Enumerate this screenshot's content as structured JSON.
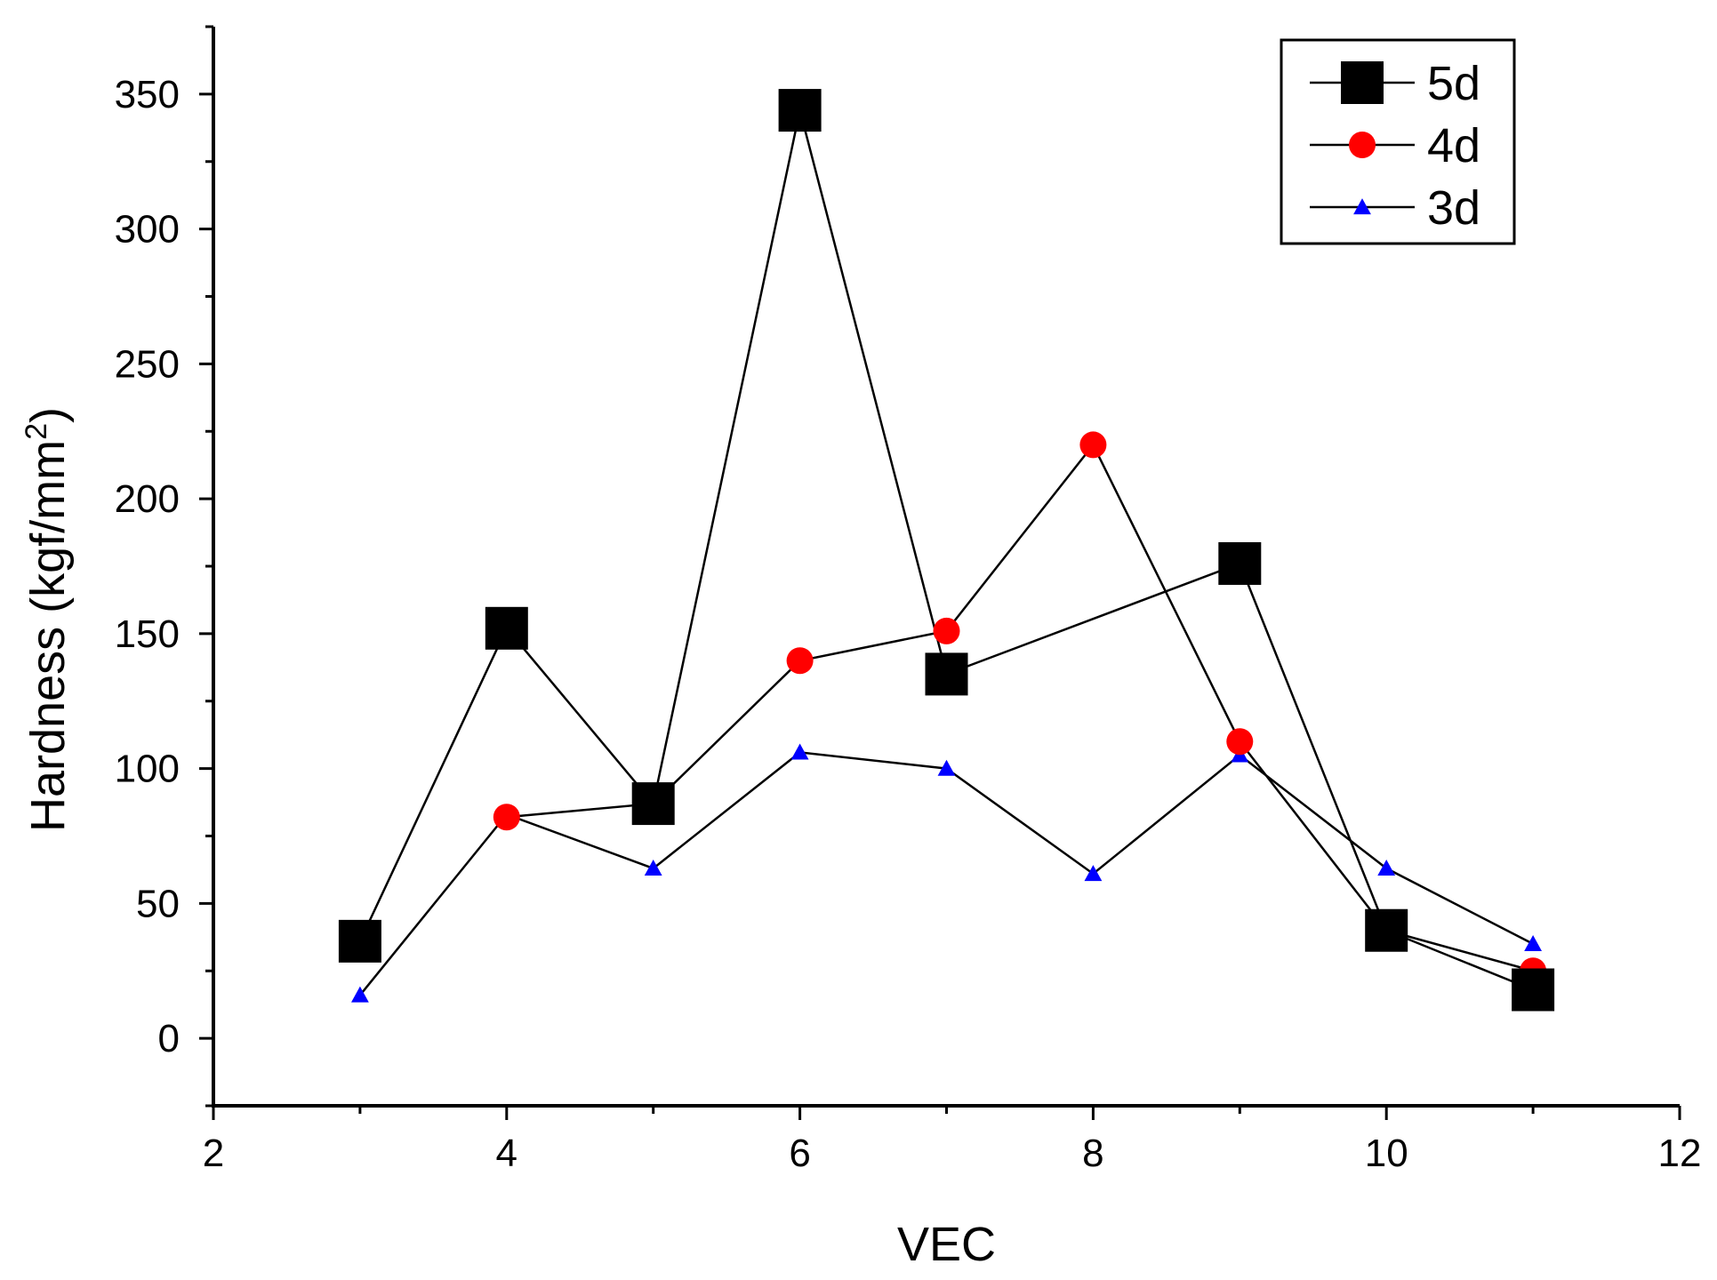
{
  "chart_data": {
    "type": "line",
    "title": "",
    "xlabel": "VEC",
    "ylabel": {
      "main": "Hardness (kgf/mm",
      "superscript": "2",
      "close": ")"
    },
    "xlim": [
      2,
      12
    ],
    "ylim": [
      -25,
      375
    ],
    "x_ticks": [
      {
        "value": 2,
        "label": "2"
      },
      {
        "value": 4,
        "label": "4"
      },
      {
        "value": 6,
        "label": "6"
      },
      {
        "value": 8,
        "label": "8"
      },
      {
        "value": 10,
        "label": "10"
      },
      {
        "value": 12,
        "label": "12"
      }
    ],
    "y_ticks": [
      {
        "value": 0,
        "label": "0"
      },
      {
        "value": 50,
        "label": "50"
      },
      {
        "value": 100,
        "label": "100"
      },
      {
        "value": 150,
        "label": "150"
      },
      {
        "value": 200,
        "label": "200"
      },
      {
        "value": 250,
        "label": "250"
      },
      {
        "value": 300,
        "label": "300"
      },
      {
        "value": 350,
        "label": "350"
      }
    ],
    "x_minor_step": 1,
    "y_minor_step": 25,
    "grid": false,
    "legend_position": "top-right",
    "series": [
      {
        "name": "5d",
        "marker": "square",
        "color": "#000000",
        "x": [
          3,
          4,
          5,
          6,
          7,
          9,
          10,
          11
        ],
        "values": [
          36,
          152,
          87,
          344,
          135,
          176,
          40,
          18
        ]
      },
      {
        "name": "4d",
        "marker": "circle",
        "color": "#ff0000",
        "x": [
          4,
          5,
          6,
          7,
          8,
          9,
          10,
          11
        ],
        "values": [
          82,
          87,
          140,
          151,
          220,
          110,
          40,
          25
        ]
      },
      {
        "name": "3d",
        "marker": "triangle",
        "color": "#0000ff",
        "x": [
          3,
          4,
          5,
          6,
          7,
          8,
          9,
          10,
          11
        ],
        "values": [
          16,
          83,
          63,
          106,
          100,
          61,
          105,
          63,
          35
        ]
      }
    ]
  }
}
